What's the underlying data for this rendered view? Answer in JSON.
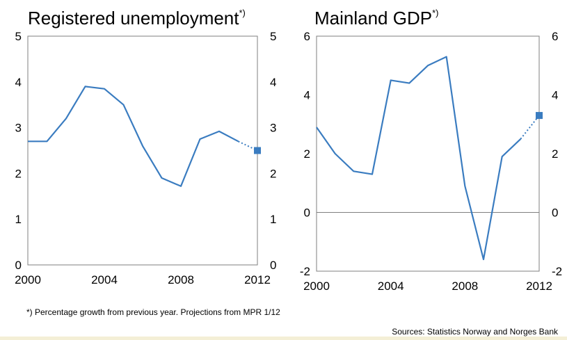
{
  "footnote": "*) Percentage growth from previous year. Projections from MPR 1/12",
  "sources": "Sources: Statistics Norway and Norges Bank",
  "colors": {
    "series": "#3a7cc0",
    "frame": "#7f7f7f",
    "zero_line": "#7f7f7f"
  },
  "chart_data": [
    {
      "type": "line",
      "title": "Registered unemployment",
      "title_superscript": "*)",
      "xlim": [
        2000,
        2012
      ],
      "ylim": [
        0,
        5
      ],
      "x_ticks": [
        "2000",
        "2004",
        "2008",
        "2012"
      ],
      "y_ticks": [
        "0",
        "1",
        "2",
        "3",
        "4",
        "5"
      ],
      "grid": false,
      "series": [
        {
          "x": [
            2000,
            2001,
            2002,
            2003,
            2004,
            2005,
            2006,
            2007,
            2008,
            2009,
            2010,
            2011
          ],
          "values": [
            2.7,
            2.7,
            3.2,
            3.9,
            3.85,
            3.5,
            2.6,
            1.9,
            1.72,
            2.75,
            2.92,
            2.7
          ]
        }
      ],
      "projection": {
        "x": [
          2011,
          2012
        ],
        "values": [
          2.7,
          2.5
        ]
      }
    },
    {
      "type": "line",
      "title": "Mainland GDP",
      "title_superscript": "*)",
      "xlim": [
        2000,
        2012
      ],
      "ylim": [
        -2,
        6
      ],
      "x_ticks": [
        "2000",
        "2004",
        "2008",
        "2012"
      ],
      "y_ticks": [
        "-2",
        "0",
        "2",
        "4",
        "6"
      ],
      "grid": false,
      "zero_line": true,
      "series": [
        {
          "x": [
            2000,
            2001,
            2002,
            2003,
            2004,
            2005,
            2006,
            2007,
            2008,
            2009,
            2010,
            2011
          ],
          "values": [
            2.9,
            2.0,
            1.4,
            1.3,
            4.5,
            4.4,
            5.0,
            5.3,
            0.9,
            -1.6,
            1.9,
            2.5
          ]
        }
      ],
      "projection": {
        "x": [
          2011,
          2012
        ],
        "values": [
          2.5,
          3.3
        ]
      }
    }
  ]
}
